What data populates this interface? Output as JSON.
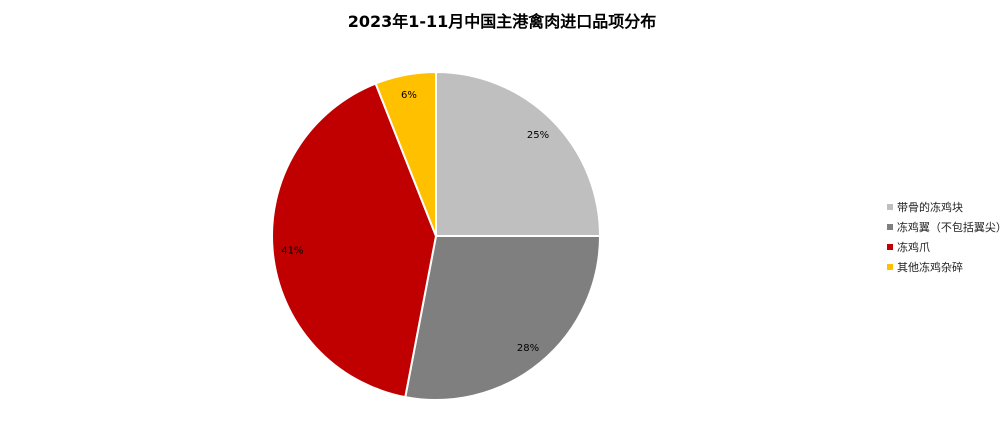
{
  "chart_data": {
    "type": "pie",
    "title": "2023年1-11月中国主港禽肉进口品项分布",
    "slices": [
      {
        "label": "带骨的冻鸡块",
        "value": 25,
        "data_label": "25%",
        "color": "#BFBFBF"
      },
      {
        "label": "冻鸡翼（不包括翼尖）",
        "value": 28,
        "data_label": "28%",
        "color": "#7F7F7F"
      },
      {
        "label": "冻鸡爪",
        "value": 41,
        "data_label": "41%",
        "color": "#C00000"
      },
      {
        "label": "其他冻鸡杂碎",
        "value": 6,
        "data_label": "6%",
        "color": "#FFC000"
      }
    ],
    "start_angle": "12 o'clock",
    "direction": "clockwise",
    "legend_position": "right"
  }
}
